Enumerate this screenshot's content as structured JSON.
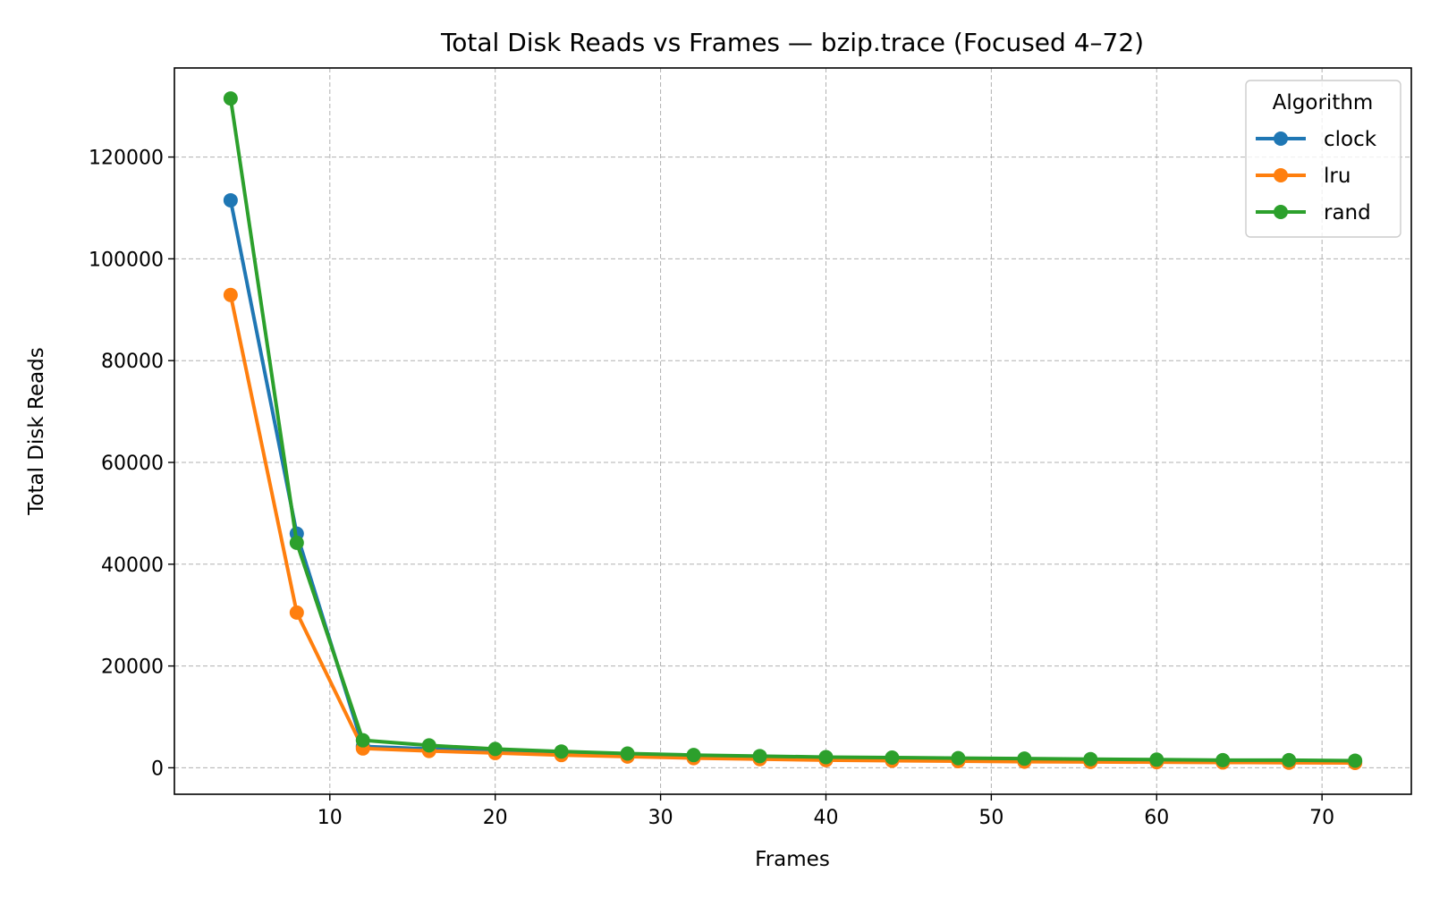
{
  "chart_data": {
    "type": "line",
    "title": "Total Disk Reads vs Frames — bzip.trace (Focused 4–72)",
    "xlabel": "Frames",
    "ylabel": "Total Disk Reads",
    "xlim": [
      0.6,
      75.4
    ],
    "ylim": [
      -5200,
      137500
    ],
    "xticks": [
      10,
      20,
      30,
      40,
      50,
      60,
      70
    ],
    "yticks": [
      0,
      20000,
      40000,
      60000,
      80000,
      100000,
      120000
    ],
    "grid": true,
    "legend": {
      "title": "Algorithm",
      "position": "top-right"
    },
    "x": [
      4,
      8,
      12,
      16,
      20,
      24,
      28,
      32,
      36,
      40,
      44,
      48,
      52,
      56,
      60,
      64,
      68,
      72
    ],
    "series": [
      {
        "name": "clock",
        "color": "#1f77b4",
        "values": [
          111500,
          46000,
          4200,
          3700,
          3300,
          2900,
          2500,
          2200,
          2000,
          1800,
          1700,
          1600,
          1500,
          1450,
          1400,
          1350,
          1300,
          1250
        ]
      },
      {
        "name": "lru",
        "color": "#ff7f0e",
        "values": [
          92900,
          30500,
          3800,
          3300,
          2900,
          2500,
          2200,
          1900,
          1700,
          1500,
          1400,
          1300,
          1200,
          1150,
          1100,
          1050,
          1000,
          950
        ]
      },
      {
        "name": "rand",
        "color": "#2ca02c",
        "values": [
          131500,
          44200,
          5400,
          4400,
          3700,
          3200,
          2800,
          2500,
          2300,
          2100,
          2000,
          1900,
          1800,
          1700,
          1600,
          1500,
          1500,
          1400
        ]
      }
    ]
  }
}
